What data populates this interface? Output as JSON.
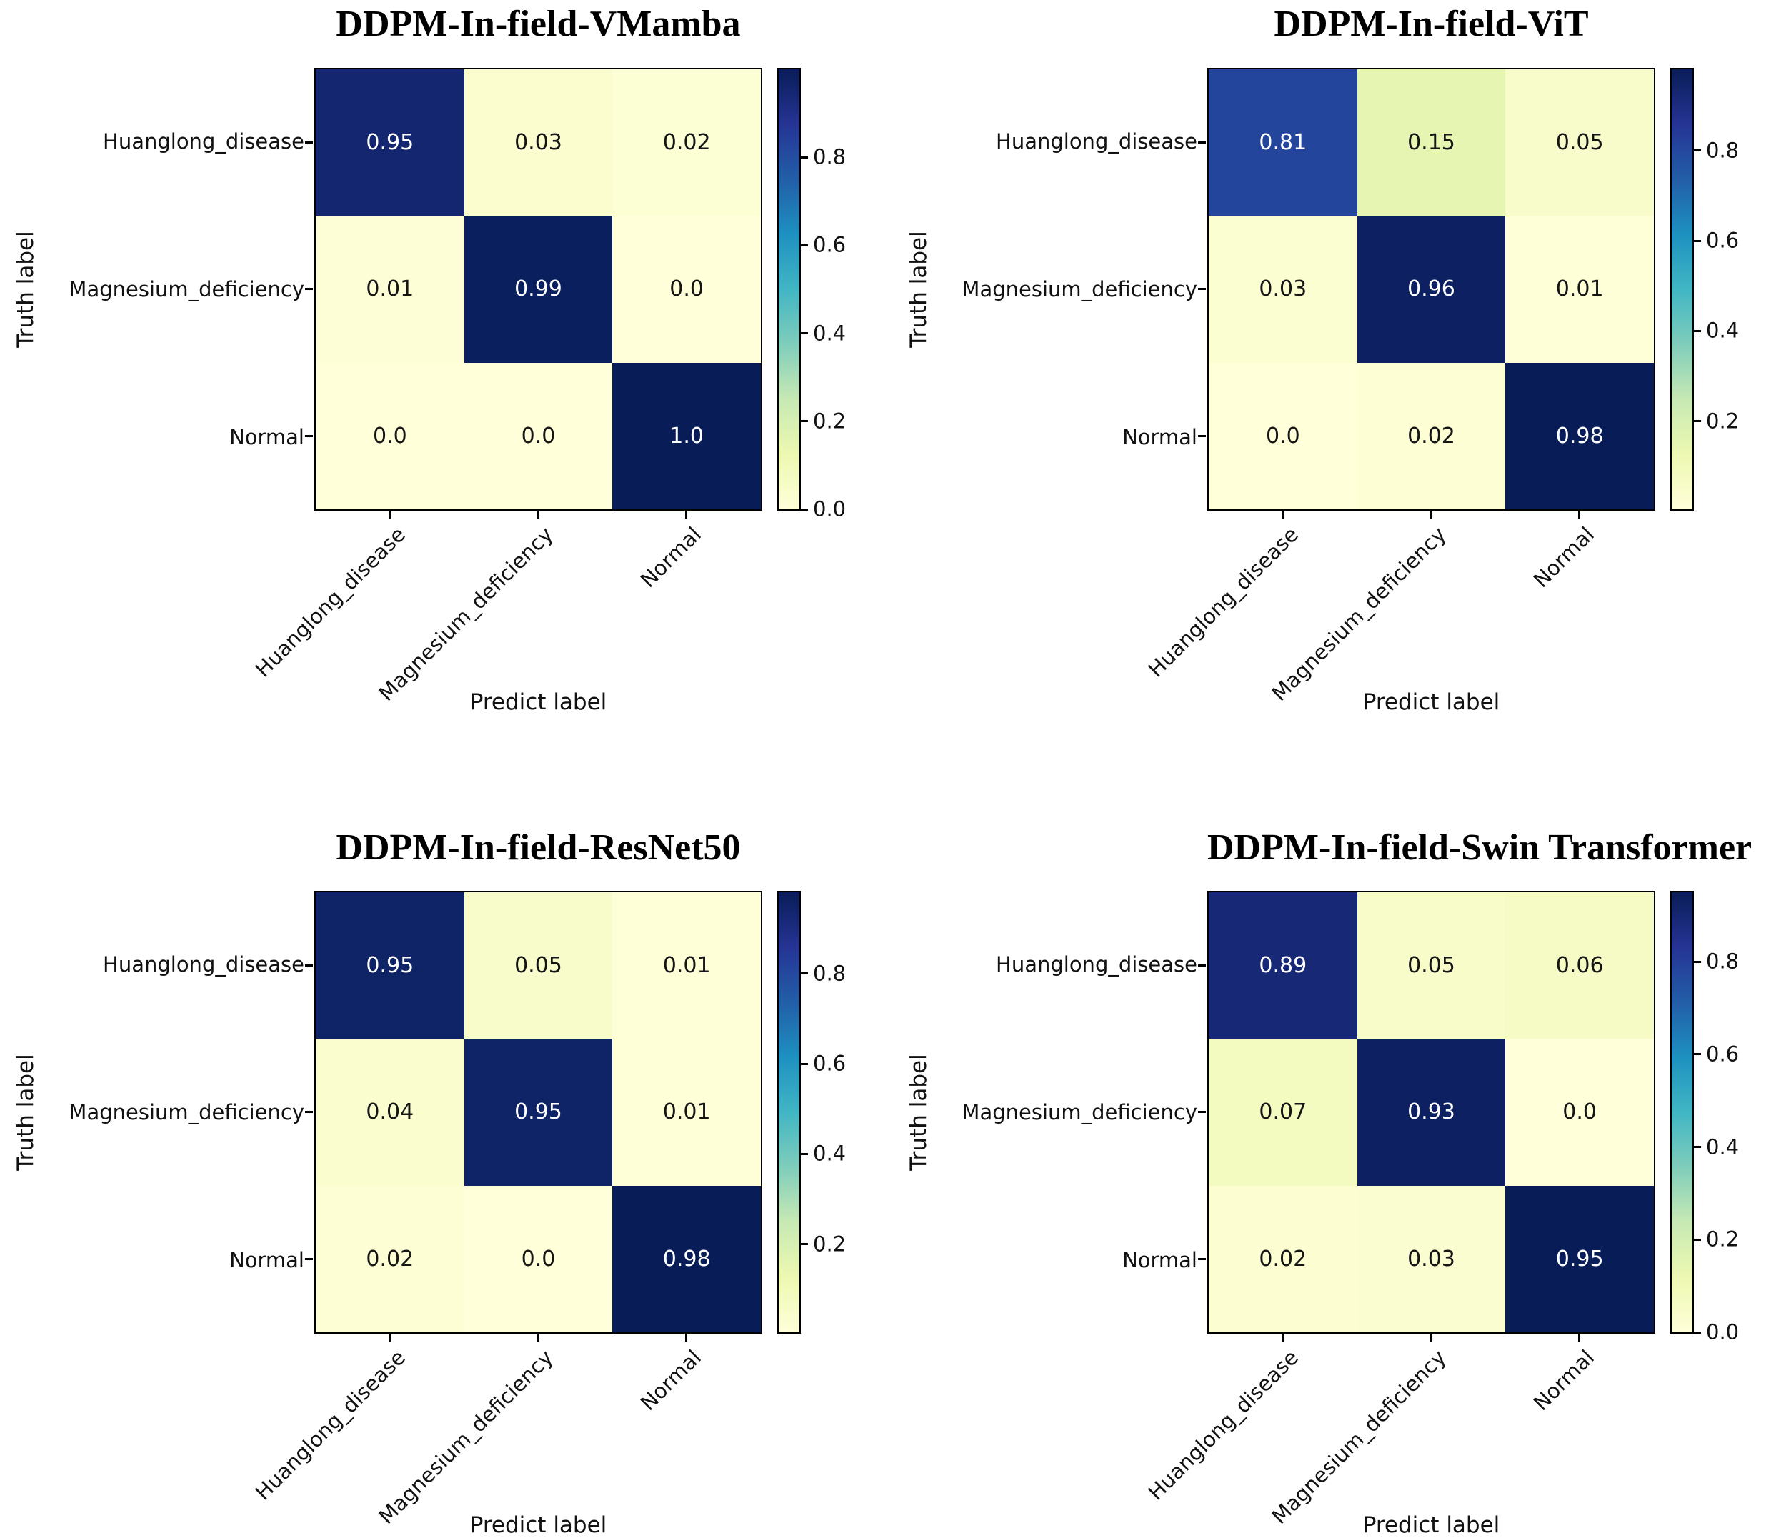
{
  "figure": {
    "background_color": "#ffffff",
    "text_color": "#000000",
    "axis_color": "#000000",
    "cell_text_light": "#ffffff",
    "cell_text_dark": "#151515",
    "colormap": {
      "name": "YlGnBu",
      "stops": [
        "#ffffd9",
        "#edf8b1",
        "#c7e9b4",
        "#7fcdbb",
        "#41b6c4",
        "#1d91c0",
        "#225ea8",
        "#253494",
        "#081d58"
      ]
    }
  },
  "chart_data": [
    {
      "type": "heatmap",
      "title": "DDPM-In-field-VMamba",
      "xlabel": "Predict label",
      "ylabel": "Truth label",
      "x_categories": [
        "Huanglong_disease",
        "Magnesium_deficiency",
        "Normal"
      ],
      "y_categories": [
        "Huanglong_disease",
        "Magnesium_deficiency",
        "Normal"
      ],
      "values": [
        [
          0.95,
          0.03,
          0.02
        ],
        [
          0.01,
          0.99,
          0.0
        ],
        [
          0.0,
          0.0,
          1.0
        ]
      ],
      "cell_labels": [
        [
          "0.95",
          "0.03",
          "0.02"
        ],
        [
          "0.01",
          "0.99",
          "0.0"
        ],
        [
          "0.0",
          "0.0",
          "1.0"
        ]
      ],
      "vmin": 0.0,
      "vmax": 1.0,
      "colorbar_ticks": [
        0.8,
        0.6,
        0.4,
        0.2,
        0.0
      ],
      "colorbar_tick_labels": [
        "0.8",
        "0.6",
        "0.4",
        "0.2",
        "0.0"
      ],
      "legend_position": "right-colorbar",
      "grid": false
    },
    {
      "type": "heatmap",
      "title": "DDPM-In-field-ViT",
      "xlabel": "Predict label",
      "ylabel": "Truth label",
      "x_categories": [
        "Huanglong_disease",
        "Magnesium_deficiency",
        "Normal"
      ],
      "y_categories": [
        "Huanglong_disease",
        "Magnesium_deficiency",
        "Normal"
      ],
      "values": [
        [
          0.81,
          0.15,
          0.05
        ],
        [
          0.03,
          0.96,
          0.01
        ],
        [
          0.0,
          0.02,
          0.98
        ]
      ],
      "cell_labels": [
        [
          "0.81",
          "0.15",
          "0.05"
        ],
        [
          "0.03",
          "0.96",
          "0.01"
        ],
        [
          "0.0",
          "0.02",
          "0.98"
        ]
      ],
      "vmin": 0.005,
      "vmax": 0.98,
      "colorbar_ticks": [
        0.8,
        0.6,
        0.4,
        0.2
      ],
      "colorbar_tick_labels": [
        "0.8",
        "0.6",
        "0.4",
        "0.2"
      ],
      "legend_position": "right-colorbar",
      "grid": false
    },
    {
      "type": "heatmap",
      "title": "DDPM-In-field-ResNet50",
      "xlabel": "Predict label",
      "ylabel": "Truth label",
      "x_categories": [
        "Huanglong_disease",
        "Magnesium_deficiency",
        "Normal"
      ],
      "y_categories": [
        "Huanglong_disease",
        "Magnesium_deficiency",
        "Normal"
      ],
      "values": [
        [
          0.95,
          0.05,
          0.01
        ],
        [
          0.04,
          0.95,
          0.01
        ],
        [
          0.02,
          0.0,
          0.98
        ]
      ],
      "cell_labels": [
        [
          "0.95",
          "0.05",
          "0.01"
        ],
        [
          "0.04",
          "0.95",
          "0.01"
        ],
        [
          "0.02",
          "0.0",
          "0.98"
        ]
      ],
      "vmin": 0.005,
      "vmax": 0.98,
      "colorbar_ticks": [
        0.8,
        0.6,
        0.4,
        0.2
      ],
      "colorbar_tick_labels": [
        "0.8",
        "0.6",
        "0.4",
        "0.2"
      ],
      "legend_position": "right-colorbar",
      "grid": false
    },
    {
      "type": "heatmap",
      "title": "DDPM-In-field-Swin Transformer",
      "xlabel": "Predict label",
      "ylabel": "Truth label",
      "x_categories": [
        "Huanglong_disease",
        "Magnesium_deficiency",
        "Normal"
      ],
      "y_categories": [
        "Huanglong_disease",
        "Magnesium_deficiency",
        "Normal"
      ],
      "values": [
        [
          0.89,
          0.05,
          0.06
        ],
        [
          0.07,
          0.93,
          0.0
        ],
        [
          0.02,
          0.03,
          0.95
        ]
      ],
      "cell_labels": [
        [
          "0.89",
          "0.05",
          "0.06"
        ],
        [
          "0.07",
          "0.93",
          "0.0"
        ],
        [
          "0.02",
          "0.03",
          "0.95"
        ]
      ],
      "vmin": 0.0,
      "vmax": 0.95,
      "colorbar_ticks": [
        0.8,
        0.6,
        0.4,
        0.2,
        0.0
      ],
      "colorbar_tick_labels": [
        "0.8",
        "0.6",
        "0.4",
        "0.2",
        "0.0"
      ],
      "legend_position": "right-colorbar",
      "grid": false
    }
  ]
}
